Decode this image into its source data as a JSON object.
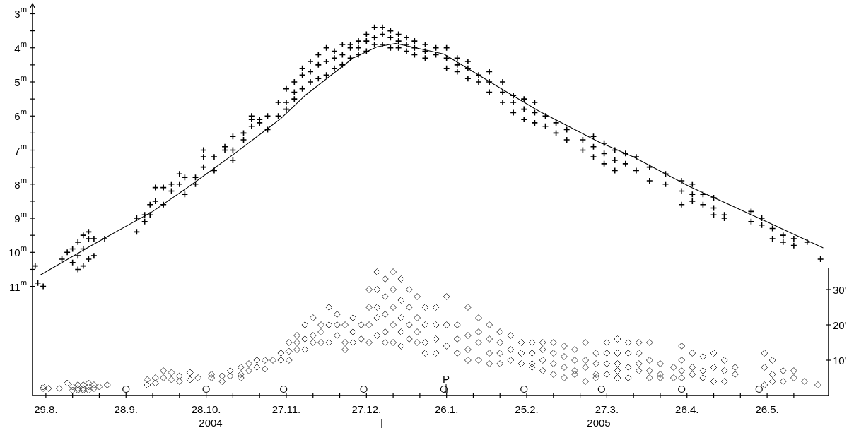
{
  "chart_data": {
    "type": "scatter",
    "xlim": [
      "2004-08-24",
      "2005-06-18"
    ],
    "xticks": [
      {
        "value": "2004-08-29",
        "label": "29.8."
      },
      {
        "value": "2004-09-08",
        "label": null
      },
      {
        "value": "2004-09-18",
        "label": null
      },
      {
        "value": "2004-09-28",
        "label": "28.9."
      },
      {
        "value": "2004-10-08",
        "label": null
      },
      {
        "value": "2004-10-18",
        "label": null
      },
      {
        "value": "2004-10-28",
        "label": "28.10."
      },
      {
        "value": "2004-11-07",
        "label": null
      },
      {
        "value": "2004-11-17",
        "label": null
      },
      {
        "value": "2004-11-27",
        "label": "27.11."
      },
      {
        "value": "2004-12-07",
        "label": null
      },
      {
        "value": "2004-12-17",
        "label": null
      },
      {
        "value": "2004-12-27",
        "label": "27.12."
      },
      {
        "value": "2005-01-06",
        "label": null
      },
      {
        "value": "2005-01-16",
        "label": null
      },
      {
        "value": "2005-01-26",
        "label": "26.1."
      },
      {
        "value": "2005-02-05",
        "label": null
      },
      {
        "value": "2005-02-15",
        "label": null
      },
      {
        "value": "2005-02-25",
        "label": "25.2."
      },
      {
        "value": "2005-03-07",
        "label": null
      },
      {
        "value": "2005-03-17",
        "label": null
      },
      {
        "value": "2005-03-27",
        "label": "27.3."
      },
      {
        "value": "2005-04-06",
        "label": null
      },
      {
        "value": "2005-04-16",
        "label": null
      },
      {
        "value": "2005-04-26",
        "label": "26.4."
      },
      {
        "value": "2005-05-06",
        "label": null
      },
      {
        "value": "2005-05-16",
        "label": null
      },
      {
        "value": "2005-05-26",
        "label": "26.5."
      },
      {
        "value": "2005-06-05",
        "label": null
      }
    ],
    "ylim": [
      14.2,
      2.7
    ],
    "yticks": [
      {
        "value": 3,
        "label": "3$^{m}$"
      },
      {
        "value": 3.5,
        "label": null
      },
      {
        "value": 4,
        "label": "4$^{m}$"
      },
      {
        "value": 4.5,
        "label": null
      },
      {
        "value": 5,
        "label": "5$^{m}$"
      },
      {
        "value": 5.5,
        "label": null
      },
      {
        "value": 6,
        "label": "6$^{m}$"
      },
      {
        "value": 6.5,
        "label": null
      },
      {
        "value": 7,
        "label": "7$^{m}$"
      },
      {
        "value": 7.5,
        "label": null
      },
      {
        "value": 8,
        "label": "8$^{m}$"
      },
      {
        "value": 8.5,
        "label": null
      },
      {
        "value": 9,
        "label": "9$^{m}$"
      },
      {
        "value": 9.5,
        "label": null
      },
      {
        "value": 10,
        "label": "10$^{m}$"
      },
      {
        "value": 10.5,
        "label": null
      },
      {
        "value": 11,
        "label": "11$^{m}$"
      }
    ],
    "y2lim": [
      0,
      36
    ],
    "y2ticks": [
      {
        "value": 10,
        "label": "10'"
      },
      {
        "value": 20,
        "label": "20'"
      },
      {
        "value": 30,
        "label": "30'"
      }
    ],
    "annotations": [
      "P",
      "2004",
      "|",
      "2005"
    ],
    "series": [
      {
        "marker": "cross",
        "color": "#000000",
        "x": [
          "2004-08-25",
          "2004-08-26",
          "2004-08-28",
          "2004-09-04",
          "2004-09-06",
          "2004-09-08",
          "2004-09-08",
          "2004-09-10",
          "2004-09-10",
          "2004-09-10",
          "2004-09-12",
          "2004-09-12",
          "2004-09-12",
          "2004-09-14",
          "2004-09-14",
          "2004-09-14",
          "2004-09-16",
          "2004-09-16",
          "2004-09-20",
          "2004-10-02",
          "2004-10-02",
          "2004-10-05",
          "2004-10-05",
          "2004-10-07",
          "2004-10-07",
          "2004-10-09",
          "2004-10-09",
          "2004-10-12",
          "2004-10-12",
          "2004-10-15",
          "2004-10-15",
          "2004-10-18",
          "2004-10-18",
          "2004-10-20",
          "2004-10-20",
          "2004-10-24",
          "2004-10-24",
          "2004-10-27",
          "2004-10-27",
          "2004-10-27",
          "2004-10-31",
          "2004-10-31",
          "2004-11-04",
          "2004-11-04",
          "2004-11-07",
          "2004-11-07",
          "2004-11-07",
          "2004-11-11",
          "2004-11-11",
          "2004-11-14",
          "2004-11-14",
          "2004-11-14",
          "2004-11-17",
          "2004-11-17",
          "2004-11-20",
          "2004-11-20",
          "2004-11-24",
          "2004-11-24",
          "2004-11-27",
          "2004-11-27",
          "2004-11-27",
          "2004-11-30",
          "2004-11-30",
          "2004-11-30",
          "2004-12-03",
          "2004-12-03",
          "2004-12-03",
          "2004-12-06",
          "2004-12-06",
          "2004-12-06",
          "2004-12-09",
          "2004-12-09",
          "2004-12-09",
          "2004-12-12",
          "2004-12-12",
          "2004-12-12",
          "2004-12-15",
          "2004-12-15",
          "2004-12-15",
          "2004-12-18",
          "2004-12-18",
          "2004-12-18",
          "2004-12-21",
          "2004-12-21",
          "2004-12-21",
          "2004-12-24",
          "2004-12-24",
          "2004-12-24",
          "2004-12-27",
          "2004-12-27",
          "2004-12-27",
          "2004-12-30",
          "2004-12-30",
          "2004-12-30",
          "2005-01-02",
          "2005-01-02",
          "2005-01-02",
          "2005-01-05",
          "2005-01-05",
          "2005-01-05",
          "2005-01-08",
          "2005-01-08",
          "2005-01-08",
          "2005-01-11",
          "2005-01-11",
          "2005-01-11",
          "2005-01-14",
          "2005-01-14",
          "2005-01-14",
          "2005-01-18",
          "2005-01-18",
          "2005-01-18",
          "2005-01-22",
          "2005-01-22",
          "2005-01-26",
          "2005-01-26",
          "2005-01-26",
          "2005-01-30",
          "2005-01-30",
          "2005-01-30",
          "2005-02-03",
          "2005-02-03",
          "2005-02-03",
          "2005-02-07",
          "2005-02-07",
          "2005-02-11",
          "2005-02-11",
          "2005-02-11",
          "2005-02-16",
          "2005-02-16",
          "2005-02-16",
          "2005-02-20",
          "2005-02-20",
          "2005-02-20",
          "2005-02-24",
          "2005-02-24",
          "2005-02-24",
          "2005-02-28",
          "2005-02-28",
          "2005-02-28",
          "2005-03-04",
          "2005-03-04",
          "2005-03-08",
          "2005-03-08",
          "2005-03-12",
          "2005-03-12",
          "2005-03-18",
          "2005-03-18",
          "2005-03-22",
          "2005-03-22",
          "2005-03-22",
          "2005-03-26",
          "2005-03-26",
          "2005-03-26",
          "2005-03-30",
          "2005-03-30",
          "2005-03-30",
          "2005-04-03",
          "2005-04-03",
          "2005-04-07",
          "2005-04-07",
          "2005-04-12",
          "2005-04-12",
          "2005-04-18",
          "2005-04-18",
          "2005-04-24",
          "2005-04-24",
          "2005-04-24",
          "2005-04-28",
          "2005-04-28",
          "2005-04-28",
          "2005-05-02",
          "2005-05-02",
          "2005-05-06",
          "2005-05-06",
          "2005-05-06",
          "2005-05-10",
          "2005-05-10",
          "2005-05-20",
          "2005-05-20",
          "2005-05-24",
          "2005-05-24",
          "2005-05-28",
          "2005-05-28",
          "2005-06-01",
          "2005-06-01",
          "2005-06-05",
          "2005-06-05",
          "2005-06-10",
          "2005-06-15"
        ],
        "values": [
          10.4,
          10.9,
          11.0,
          10.2,
          10.0,
          10.3,
          9.9,
          10.5,
          10.1,
          9.7,
          10.4,
          9.9,
          9.5,
          10.2,
          9.6,
          9.4,
          10.1,
          9.6,
          9.6,
          9.0,
          9.4,
          8.9,
          9.1,
          8.6,
          8.9,
          8.1,
          8.5,
          8.1,
          8.6,
          8.0,
          8.2,
          7.7,
          8.0,
          7.8,
          8.3,
          7.8,
          8.0,
          7.0,
          7.2,
          7.5,
          7.2,
          7.6,
          6.9,
          7.0,
          6.6,
          7.0,
          7.3,
          6.5,
          6.7,
          6.0,
          6.1,
          6.3,
          6.1,
          6.2,
          6.0,
          6.4,
          5.6,
          6.0,
          5.2,
          5.6,
          5.8,
          5.0,
          5.3,
          5.5,
          4.6,
          4.8,
          5.2,
          4.4,
          4.7,
          5.0,
          4.2,
          4.5,
          4.9,
          4.0,
          4.4,
          4.8,
          4.1,
          4.3,
          4.6,
          3.9,
          4.2,
          4.5,
          3.9,
          4.0,
          4.3,
          3.8,
          4.0,
          4.2,
          3.6,
          3.8,
          4.1,
          3.4,
          3.7,
          3.9,
          3.4,
          3.6,
          3.9,
          3.5,
          3.7,
          4.0,
          3.6,
          3.8,
          4.0,
          3.7,
          3.9,
          4.1,
          3.8,
          4.0,
          4.2,
          3.9,
          4.1,
          4.3,
          4.0,
          4.2,
          4.0,
          4.3,
          4.6,
          4.3,
          4.5,
          4.7,
          4.4,
          4.6,
          4.9,
          4.8,
          5.0,
          4.7,
          5.0,
          5.3,
          5.0,
          5.3,
          5.6,
          5.4,
          5.6,
          5.9,
          5.5,
          5.8,
          6.1,
          5.6,
          5.9,
          6.2,
          6.0,
          6.3,
          6.2,
          6.5,
          6.4,
          6.7,
          6.7,
          7.0,
          6.6,
          6.9,
          7.2,
          6.8,
          7.1,
          7.4,
          7.0,
          7.3,
          7.6,
          7.1,
          7.4,
          7.2,
          7.6,
          7.5,
          7.9,
          7.7,
          8.0,
          7.9,
          8.2,
          8.6,
          8.0,
          8.3,
          8.5,
          8.3,
          8.6,
          8.4,
          8.7,
          8.9,
          8.9,
          9.0,
          8.8,
          9.1,
          9.0,
          9.2,
          9.3,
          9.6,
          9.5,
          9.7,
          9.6,
          9.8,
          9.7,
          10.2
        ]
      },
      {
        "type": "line",
        "line_style": "solid",
        "marker": "none",
        "color": "#000000",
        "x": [
          "2004-08-27",
          "2004-09-15",
          "2004-10-08",
          "2004-10-21",
          "2004-11-08",
          "2004-11-21",
          "2004-11-25",
          "2004-12-04",
          "2004-12-22",
          "2004-12-31",
          "2005-01-07",
          "2005-01-25",
          "2005-02-14",
          "2005-03-01",
          "2005-03-24",
          "2005-04-06",
          "2005-04-27",
          "2005-05-25",
          "2005-06-16"
        ],
        "values": [
          10.66,
          9.8,
          8.8,
          8.1,
          7.08,
          6.31,
          6.07,
          5.4,
          4.3,
          3.97,
          3.87,
          4.18,
          5.13,
          5.83,
          6.76,
          7.2,
          8.07,
          9.07,
          9.87
        ]
      },
      {
        "marker": "diamond",
        "axis": "y2",
        "color": "#404040",
        "x": [
          "2004-08-28",
          "2004-08-28",
          "2004-08-30",
          "2004-09-03",
          "2004-09-06",
          "2004-09-08",
          "2004-09-08",
          "2004-09-10",
          "2004-09-10",
          "2004-09-10",
          "2004-09-12",
          "2004-09-12",
          "2004-09-12",
          "2004-09-14",
          "2004-09-14",
          "2004-09-14",
          "2004-09-16",
          "2004-09-16",
          "2004-09-18",
          "2004-09-21",
          "2004-10-06",
          "2004-10-06",
          "2004-10-09",
          "2004-10-09",
          "2004-10-12",
          "2004-10-12",
          "2004-10-15",
          "2004-10-15",
          "2004-10-18",
          "2004-10-18",
          "2004-10-22",
          "2004-10-22",
          "2004-10-25",
          "2004-10-30",
          "2004-10-30",
          "2004-11-03",
          "2004-11-03",
          "2004-11-06",
          "2004-11-06",
          "2004-11-10",
          "2004-11-10",
          "2004-11-10",
          "2004-11-13",
          "2004-11-13",
          "2004-11-16",
          "2004-11-16",
          "2004-11-19",
          "2004-11-19",
          "2004-11-22",
          "2004-11-25",
          "2004-11-25",
          "2004-11-28",
          "2004-11-28",
          "2004-11-28",
          "2004-12-01",
          "2004-12-01",
          "2004-12-01",
          "2004-12-04",
          "2004-12-04",
          "2004-12-04",
          "2004-12-07",
          "2004-12-07",
          "2004-12-07",
          "2004-12-10",
          "2004-12-10",
          "2004-12-10",
          "2004-12-13",
          "2004-12-13",
          "2004-12-13",
          "2004-12-16",
          "2004-12-16",
          "2004-12-16",
          "2004-12-19",
          "2004-12-19",
          "2004-12-19",
          "2004-12-22",
          "2004-12-22",
          "2004-12-22",
          "2004-12-25",
          "2004-12-25",
          "2004-12-28",
          "2004-12-28",
          "2004-12-28",
          "2004-12-28",
          "2004-12-31",
          "2004-12-31",
          "2004-12-31",
          "2004-12-31",
          "2004-12-31",
          "2005-01-03",
          "2005-01-03",
          "2005-01-03",
          "2005-01-03",
          "2005-01-03",
          "2005-01-06",
          "2005-01-06",
          "2005-01-06",
          "2005-01-06",
          "2005-01-06",
          "2005-01-09",
          "2005-01-09",
          "2005-01-09",
          "2005-01-09",
          "2005-01-09",
          "2005-01-12",
          "2005-01-12",
          "2005-01-12",
          "2005-01-12",
          "2005-01-15",
          "2005-01-15",
          "2005-01-15",
          "2005-01-15",
          "2005-01-18",
          "2005-01-18",
          "2005-01-18",
          "2005-01-18",
          "2005-01-22",
          "2005-01-22",
          "2005-01-22",
          "2005-01-22",
          "2005-01-26",
          "2005-01-26",
          "2005-01-26",
          "2005-01-30",
          "2005-01-30",
          "2005-01-30",
          "2005-02-03",
          "2005-02-03",
          "2005-02-03",
          "2005-02-03",
          "2005-02-07",
          "2005-02-07",
          "2005-02-07",
          "2005-02-07",
          "2005-02-11",
          "2005-02-11",
          "2005-02-11",
          "2005-02-11",
          "2005-02-15",
          "2005-02-15",
          "2005-02-15",
          "2005-02-15",
          "2005-02-19",
          "2005-02-19",
          "2005-02-19",
          "2005-02-23",
          "2005-02-23",
          "2005-02-23",
          "2005-02-27",
          "2005-02-27",
          "2005-02-27",
          "2005-02-27",
          "2005-03-03",
          "2005-03-03",
          "2005-03-03",
          "2005-03-03",
          "2005-03-07",
          "2005-03-07",
          "2005-03-07",
          "2005-03-07",
          "2005-03-11",
          "2005-03-11",
          "2005-03-11",
          "2005-03-11",
          "2005-03-15",
          "2005-03-15",
          "2005-03-15",
          "2005-03-15",
          "2005-03-19",
          "2005-03-19",
          "2005-03-19",
          "2005-03-19",
          "2005-03-23",
          "2005-03-23",
          "2005-03-23",
          "2005-03-23",
          "2005-03-27",
          "2005-03-27",
          "2005-03-27",
          "2005-03-27",
          "2005-03-31",
          "2005-03-31",
          "2005-03-31",
          "2005-03-31",
          "2005-03-31",
          "2005-04-04",
          "2005-04-04",
          "2005-04-04",
          "2005-04-04",
          "2005-04-08",
          "2005-04-08",
          "2005-04-08",
          "2005-04-08",
          "2005-04-12",
          "2005-04-12",
          "2005-04-12",
          "2005-04-12",
          "2005-04-16",
          "2005-04-16",
          "2005-04-16",
          "2005-04-21",
          "2005-04-21",
          "2005-04-24",
          "2005-04-24",
          "2005-04-24",
          "2005-04-24",
          "2005-04-28",
          "2005-04-28",
          "2005-04-28",
          "2005-05-02",
          "2005-05-02",
          "2005-05-02",
          "2005-05-06",
          "2005-05-06",
          "2005-05-06",
          "2005-05-10",
          "2005-05-10",
          "2005-05-10",
          "2005-05-14",
          "2005-05-14",
          "2005-05-25",
          "2005-05-25",
          "2005-05-25",
          "2005-05-28",
          "2005-05-28",
          "2005-05-28",
          "2005-06-01",
          "2005-06-01",
          "2005-06-05",
          "2005-06-05",
          "2005-06-09",
          "2005-06-14"
        ],
        "values": [
          2.5,
          2,
          2,
          2,
          3.5,
          2.5,
          1.5,
          3,
          2,
          1.5,
          3,
          2,
          1.5,
          3.5,
          2.5,
          1.5,
          3,
          2,
          2.5,
          3,
          4.5,
          3,
          5,
          3.5,
          7,
          5,
          6.5,
          4.5,
          5.5,
          4,
          6.5,
          4.5,
          5,
          6,
          5,
          5.5,
          4,
          7,
          5.5,
          8,
          6,
          5,
          9,
          7,
          10,
          8,
          10,
          7.5,
          10,
          12,
          10,
          15,
          12.5,
          10,
          17,
          15,
          13,
          20,
          16,
          13,
          22,
          17,
          15,
          20,
          18,
          15,
          25,
          20,
          15,
          23,
          20,
          17,
          20,
          15,
          13,
          22,
          18,
          15,
          20,
          16,
          30,
          25,
          20,
          15,
          35,
          30,
          25,
          22,
          17,
          33,
          28,
          23,
          18,
          15,
          35,
          30,
          25,
          20,
          15,
          33,
          27,
          22,
          18,
          14,
          30,
          25,
          20,
          16,
          28,
          22,
          18,
          15,
          25,
          20,
          15,
          12,
          25,
          20,
          16,
          12,
          28,
          20,
          14,
          20,
          16,
          12,
          25,
          17,
          13,
          10,
          22,
          18,
          15,
          10,
          20,
          16,
          12,
          9,
          18,
          15,
          12,
          9,
          17,
          13,
          10,
          15,
          12,
          9,
          15,
          12,
          9,
          8,
          15,
          13,
          10,
          7,
          15,
          12,
          9,
          6,
          14,
          11,
          8,
          5,
          13,
          10,
          7,
          6,
          15,
          10,
          8,
          4,
          12,
          9,
          6,
          5,
          15,
          12,
          9,
          6,
          16,
          12,
          9,
          7,
          5,
          15,
          12,
          8,
          5,
          15,
          12,
          9,
          7,
          15,
          10,
          7,
          5,
          9,
          6,
          5,
          8,
          5,
          14,
          10,
          7,
          5,
          12,
          8,
          6,
          11,
          7,
          5,
          12,
          8,
          4,
          10,
          7,
          4,
          8,
          6,
          12,
          8,
          3,
          10,
          6,
          4,
          7,
          4,
          7,
          5,
          4,
          3
        ]
      },
      {
        "marker": "circle",
        "axis": "y2",
        "color": "#000000",
        "x": [
          "2004-09-28",
          "2004-10-28",
          "2004-11-26",
          "2004-12-26",
          "2005-01-25",
          "2005-02-24",
          "2005-03-25",
          "2005-04-24",
          "2005-05-23"
        ],
        "values": [
          1.8,
          1.8,
          1.8,
          1.8,
          1.8,
          1.8,
          1.8,
          1.8,
          1.8
        ]
      }
    ]
  }
}
